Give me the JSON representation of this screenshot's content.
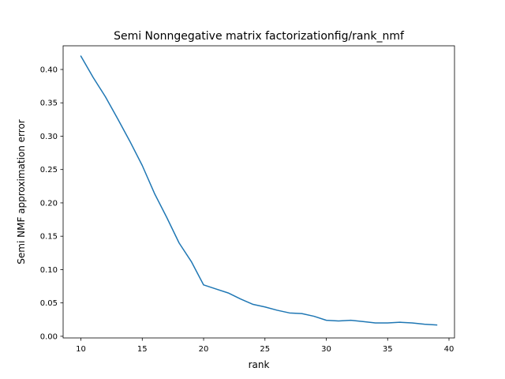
{
  "chart_data": {
    "type": "line",
    "title": "Semi Nonngegative matrix factorizationfig/rank_nmf",
    "xlabel": "rank",
    "ylabel": "Semi NMF approximation error",
    "xlim": [
      8.55,
      40.45
    ],
    "ylim": [
      -0.0025,
      0.4355
    ],
    "xticks": [
      10,
      15,
      20,
      25,
      30,
      35,
      40
    ],
    "xtick_labels": [
      "10",
      "15",
      "20",
      "25",
      "30",
      "35",
      "40"
    ],
    "yticks": [
      0.0,
      0.05,
      0.1,
      0.15,
      0.2,
      0.25,
      0.3,
      0.35,
      0.4
    ],
    "ytick_labels": [
      "0.00",
      "0.05",
      "0.10",
      "0.15",
      "0.20",
      "0.25",
      "0.30",
      "0.35",
      "0.40"
    ],
    "grid": false,
    "series": [
      {
        "color": "#1f77b4",
        "x": [
          10,
          11,
          12,
          13,
          14,
          15,
          16,
          17,
          18,
          19,
          20,
          21,
          22,
          23,
          24,
          25,
          26,
          27,
          28,
          29,
          30,
          31,
          32,
          33,
          34,
          35,
          36,
          37,
          38,
          39
        ],
        "y": [
          0.42,
          0.388,
          0.359,
          0.326,
          0.292,
          0.256,
          0.214,
          0.178,
          0.14,
          0.112,
          0.077,
          0.071,
          0.065,
          0.056,
          0.048,
          0.044,
          0.039,
          0.035,
          0.034,
          0.03,
          0.024,
          0.023,
          0.024,
          0.022,
          0.02,
          0.02,
          0.021,
          0.02,
          0.018,
          0.017
        ]
      }
    ]
  }
}
